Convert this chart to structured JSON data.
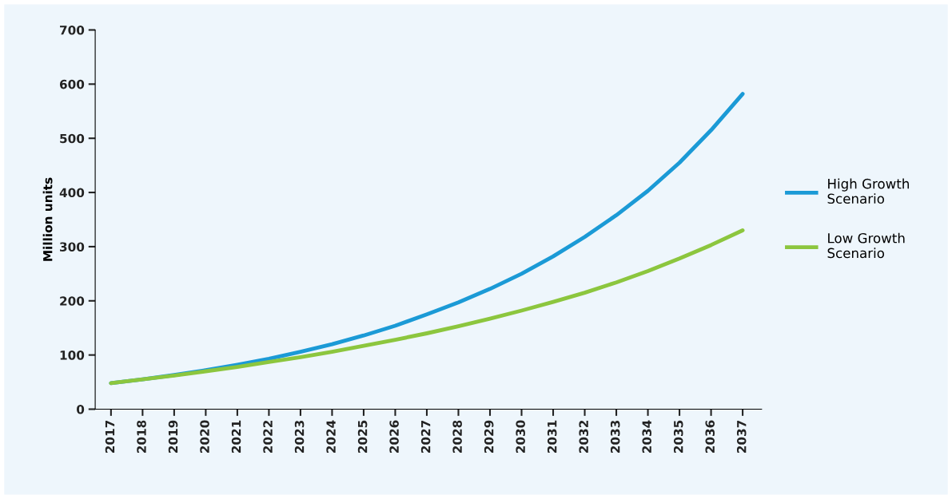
{
  "chart_data": {
    "type": "line",
    "ylabel": "Million units",
    "categories": [
      "2017",
      "2018",
      "2019",
      "2020",
      "2021",
      "2022",
      "2023",
      "2024",
      "2025",
      "2026",
      "2027",
      "2028",
      "2029",
      "2030",
      "2031",
      "2032",
      "2033",
      "2034",
      "2035",
      "2036",
      "2037"
    ],
    "series": [
      {
        "name": "High Growth Scenario",
        "color": "#1b9ad6",
        "values": [
          48,
          55,
          63,
          72,
          82,
          93,
          106,
          120,
          136,
          154,
          175,
          197,
          222,
          250,
          282,
          318,
          358,
          403,
          455,
          515,
          582
        ]
      },
      {
        "name": "Low Growth Scenario",
        "color": "#8cc63e",
        "values": [
          48,
          55,
          62,
          70,
          78,
          87,
          96,
          106,
          117,
          128,
          140,
          153,
          167,
          182,
          198,
          215,
          234,
          255,
          278,
          303,
          330
        ]
      }
    ],
    "ylim": [
      0,
      700
    ],
    "yticks": [
      0,
      100,
      200,
      300,
      400,
      500,
      600,
      700
    ],
    "grid": false,
    "legend": "right",
    "marker": "none",
    "line_style": "solid"
  }
}
